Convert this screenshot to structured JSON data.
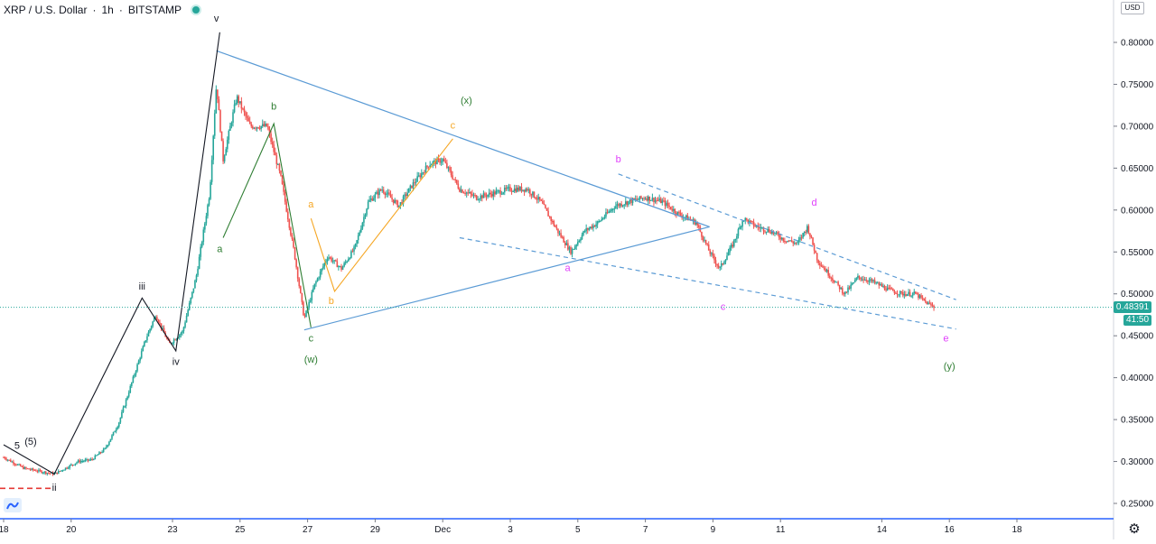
{
  "header": {
    "symbol": "XRP / U.S. Dollar",
    "interval": "1h",
    "exchange": "BITSTAMP",
    "separator": "·"
  },
  "currency": "USD",
  "colors": {
    "up": "#26a69a",
    "down": "#ef5350",
    "trendline": "#5b9bd5",
    "wave_orange": "#f5a623",
    "wave_magenta": "#e040fb",
    "wave_green": "#2e7d32",
    "wave_black": "#131722"
  },
  "chart_data": {
    "type": "candlestick",
    "title": "XRP / U.S. Dollar · 1h · BITSTAMP",
    "ylim": [
      0.235,
      0.8312
    ],
    "y_ticks": [
      0.25,
      0.3,
      0.35,
      0.4,
      0.45,
      0.5,
      0.55,
      0.6,
      0.65,
      0.7,
      0.75,
      0.8
    ],
    "y_tick_labels": [
      "0.25000",
      "0.30000",
      "0.35000",
      "0.40000",
      "0.45000",
      "0.50000",
      "0.55000",
      "0.60000",
      "0.65000",
      "0.70000",
      "0.75000",
      "0.80000"
    ],
    "x_range_days": [
      0,
      30
    ],
    "x_ticks": [
      {
        "day": 0,
        "label": "18"
      },
      {
        "day": 2,
        "label": "20"
      },
      {
        "day": 5,
        "label": "23"
      },
      {
        "day": 7,
        "label": "25"
      },
      {
        "day": 9,
        "label": "27"
      },
      {
        "day": 11,
        "label": "29"
      },
      {
        "day": 13,
        "label": "Dec"
      },
      {
        "day": 15,
        "label": "3"
      },
      {
        "day": 17,
        "label": "5"
      },
      {
        "day": 19,
        "label": "7"
      },
      {
        "day": 21,
        "label": "9"
      },
      {
        "day": 23,
        "label": "11"
      },
      {
        "day": 26,
        "label": "14"
      },
      {
        "day": 28,
        "label": "16"
      },
      {
        "day": 30,
        "label": "18"
      }
    ],
    "price_path": [
      [
        0.0,
        0.305
      ],
      [
        0.6,
        0.292
      ],
      [
        1.5,
        0.285
      ],
      [
        2.2,
        0.3
      ],
      [
        2.6,
        0.302
      ],
      [
        3.0,
        0.315
      ],
      [
        3.4,
        0.345
      ],
      [
        3.8,
        0.395
      ],
      [
        4.2,
        0.445
      ],
      [
        4.5,
        0.475
      ],
      [
        4.9,
        0.44
      ],
      [
        5.3,
        0.455
      ],
      [
        5.7,
        0.52
      ],
      [
        6.1,
        0.62
      ],
      [
        6.3,
        0.75
      ],
      [
        6.5,
        0.66
      ],
      [
        6.9,
        0.735
      ],
      [
        7.3,
        0.7
      ],
      [
        7.8,
        0.7
      ],
      [
        8.2,
        0.64
      ],
      [
        8.6,
        0.55
      ],
      [
        8.9,
        0.47
      ],
      [
        9.2,
        0.51
      ],
      [
        9.6,
        0.545
      ],
      [
        10.0,
        0.53
      ],
      [
        10.4,
        0.555
      ],
      [
        10.8,
        0.61
      ],
      [
        11.2,
        0.625
      ],
      [
        11.7,
        0.605
      ],
      [
        12.1,
        0.63
      ],
      [
        12.6,
        0.655
      ],
      [
        13.0,
        0.66
      ],
      [
        13.5,
        0.625
      ],
      [
        14.0,
        0.615
      ],
      [
        14.5,
        0.62
      ],
      [
        15.0,
        0.625
      ],
      [
        15.5,
        0.625
      ],
      [
        15.9,
        0.61
      ],
      [
        16.4,
        0.575
      ],
      [
        16.8,
        0.55
      ],
      [
        17.2,
        0.575
      ],
      [
        17.6,
        0.585
      ],
      [
        18.1,
        0.605
      ],
      [
        18.5,
        0.61
      ],
      [
        19.0,
        0.615
      ],
      [
        19.5,
        0.61
      ],
      [
        20.0,
        0.595
      ],
      [
        20.5,
        0.585
      ],
      [
        20.9,
        0.55
      ],
      [
        21.2,
        0.53
      ],
      [
        21.6,
        0.56
      ],
      [
        21.9,
        0.59
      ],
      [
        22.3,
        0.58
      ],
      [
        22.7,
        0.575
      ],
      [
        23.1,
        0.565
      ],
      [
        23.5,
        0.56
      ],
      [
        23.8,
        0.58
      ],
      [
        24.1,
        0.54
      ],
      [
        24.5,
        0.52
      ],
      [
        24.9,
        0.5
      ],
      [
        25.3,
        0.52
      ],
      [
        25.7,
        0.515
      ],
      [
        26.2,
        0.505
      ],
      [
        26.6,
        0.5
      ],
      [
        27.0,
        0.5
      ],
      [
        27.3,
        0.49
      ],
      [
        27.55,
        0.4839
      ]
    ],
    "last_price": "0.48391",
    "last_price_value": 0.48391,
    "countdown": "41:50",
    "trendlines": [
      {
        "style": "solid",
        "color": "#5b9bd5",
        "points": [
          [
            6.3,
            0.79
          ],
          [
            20.9,
            0.58
          ]
        ]
      },
      {
        "style": "solid",
        "color": "#5b9bd5",
        "points": [
          [
            8.9,
            0.457
          ],
          [
            20.9,
            0.58
          ]
        ]
      },
      {
        "style": "dashed",
        "color": "#5b9bd5",
        "points": [
          [
            18.2,
            0.643
          ],
          [
            28.2,
            0.493
          ]
        ]
      },
      {
        "style": "dashed",
        "color": "#5b9bd5",
        "points": [
          [
            13.5,
            0.567
          ],
          [
            28.2,
            0.458
          ]
        ]
      }
    ],
    "wave_lines": [
      {
        "color": "#131722",
        "points": [
          [
            0.0,
            0.32
          ],
          [
            1.5,
            0.285
          ],
          [
            4.1,
            0.495
          ],
          [
            5.1,
            0.432
          ],
          [
            6.4,
            0.812
          ]
        ]
      },
      {
        "color": "#2e7d32",
        "points": [
          [
            6.5,
            0.567
          ],
          [
            8.0,
            0.703
          ],
          [
            9.1,
            0.46
          ]
        ]
      },
      {
        "color": "#f5a623",
        "points": [
          [
            9.1,
            0.59
          ],
          [
            9.8,
            0.503
          ],
          [
            13.3,
            0.685
          ]
        ]
      }
    ],
    "annotations": [
      {
        "label": "v",
        "day": 6.3,
        "value": 0.825,
        "color": "#131722"
      },
      {
        "label": "b",
        "day": 8.0,
        "value": 0.72,
        "color": "#2e7d32"
      },
      {
        "label": "a",
        "day": 6.4,
        "value": 0.55,
        "color": "#2e7d32"
      },
      {
        "label": "c",
        "day": 9.1,
        "value": 0.443,
        "color": "#2e7d32"
      },
      {
        "label": "(w)",
        "day": 9.1,
        "value": 0.418,
        "color": "#2e7d32"
      },
      {
        "label": "a",
        "day": 9.1,
        "value": 0.603,
        "color": "#f5a623"
      },
      {
        "label": "b",
        "day": 9.7,
        "value": 0.488,
        "color": "#f5a623"
      },
      {
        "label": "c",
        "day": 13.3,
        "value": 0.697,
        "color": "#f5a623"
      },
      {
        "label": "(x)",
        "day": 13.7,
        "value": 0.727,
        "color": "#2e7d32"
      },
      {
        "label": "a",
        "day": 16.7,
        "value": 0.527,
        "color": "#e040fb"
      },
      {
        "label": "b",
        "day": 18.2,
        "value": 0.657,
        "color": "#e040fb"
      },
      {
        "label": "c",
        "day": 21.3,
        "value": 0.481,
        "color": "#e040fb"
      },
      {
        "label": "d",
        "day": 24.0,
        "value": 0.605,
        "color": "#e040fb"
      },
      {
        "label": "e",
        "day": 27.9,
        "value": 0.443,
        "color": "#e040fb"
      },
      {
        "label": "(y)",
        "day": 28.0,
        "value": 0.41,
        "color": "#2e7d32"
      },
      {
        "label": "iii",
        "day": 4.1,
        "value": 0.505,
        "color": "#131722"
      },
      {
        "label": "iv",
        "day": 5.1,
        "value": 0.415,
        "color": "#131722"
      },
      {
        "label": "ii",
        "day": 1.5,
        "value": 0.265,
        "color": "#131722"
      },
      {
        "label": "5",
        "day": 0.4,
        "value": 0.315,
        "color": "#131722"
      },
      {
        "label": "(5)",
        "day": 0.8,
        "value": 0.32,
        "color": "#131722"
      }
    ],
    "red_dashed_level": 0.268,
    "last_price_line": 0.48391
  }
}
